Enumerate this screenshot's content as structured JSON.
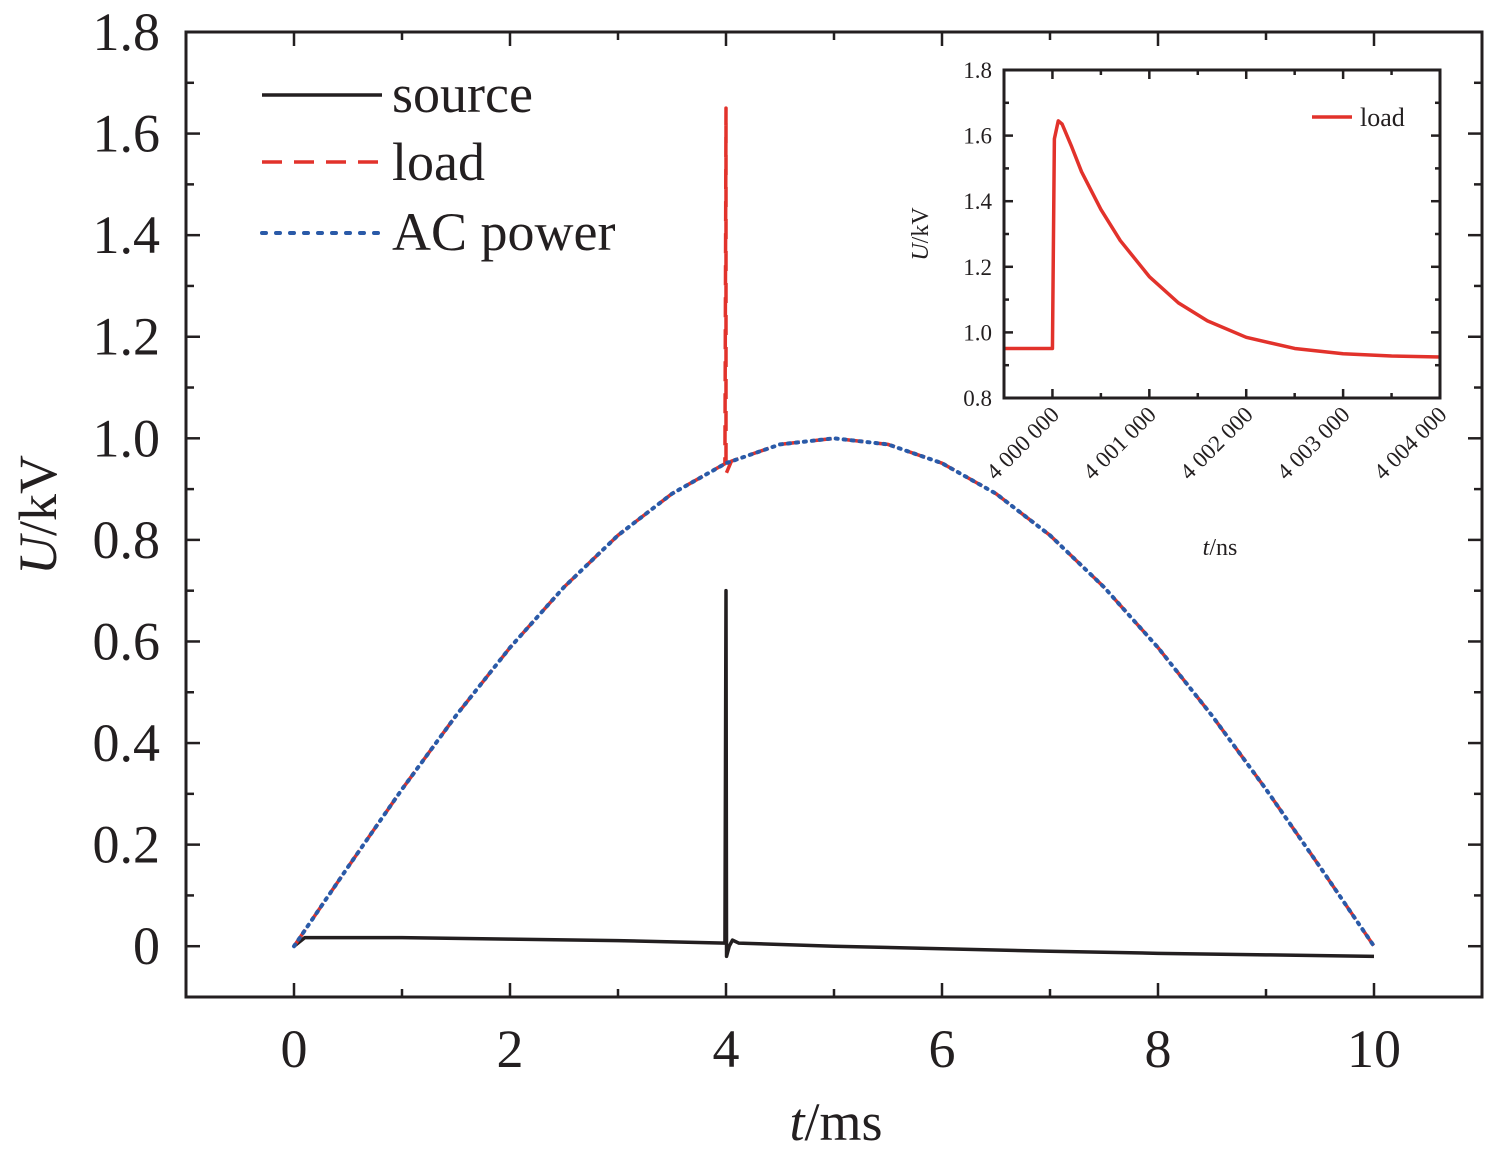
{
  "chart_data": [
    {
      "type": "line",
      "xlabel_var": "t",
      "xlabel_unit": "/ms",
      "ylabel_var": "U",
      "ylabel_unit": "/kV",
      "xlim": [
        -1,
        11
      ],
      "ylim": [
        -0.1,
        1.8
      ],
      "x_ticks": [
        0,
        2,
        4,
        6,
        8,
        10
      ],
      "x_tick_labels": [
        "0",
        "2",
        "4",
        "6",
        "8",
        "10"
      ],
      "y_ticks": [
        0,
        0.2,
        0.4,
        0.6,
        0.8,
        1.0,
        1.2,
        1.4,
        1.6,
        1.8
      ],
      "y_tick_labels": [
        "0",
        "0.2",
        "0.4",
        "0.6",
        "0.8",
        "1.0",
        "1.2",
        "1.4",
        "1.6",
        "1.8"
      ],
      "grid": false,
      "legend_position": "top-left",
      "series": [
        {
          "name": "source",
          "color": "#231f20",
          "style": "solid",
          "points": [
            [
              0,
              0
            ],
            [
              0.1,
              0.017
            ],
            [
              1,
              0.017
            ],
            [
              2,
              0.014
            ],
            [
              3,
              0.011
            ],
            [
              3.99,
              0.006
            ],
            [
              4.0,
              0.7
            ],
            [
              4.005,
              -0.02
            ],
            [
              4.03,
              0.0
            ],
            [
              4.06,
              0.012
            ],
            [
              4.12,
              0.006
            ],
            [
              5,
              0.0
            ],
            [
              6,
              -0.005
            ],
            [
              7,
              -0.01
            ],
            [
              8,
              -0.014
            ],
            [
              9,
              -0.017
            ],
            [
              10,
              -0.02
            ]
          ]
        },
        {
          "name": "load",
          "color": "#e2322b",
          "style": "dashed",
          "points": [
            [
              0,
              0
            ],
            [
              0.5,
              0.156
            ],
            [
              1,
              0.309
            ],
            [
              1.5,
              0.454
            ],
            [
              2,
              0.588
            ],
            [
              2.5,
              0.707
            ],
            [
              3,
              0.809
            ],
            [
              3.5,
              0.891
            ],
            [
              3.99,
              0.95
            ],
            [
              4.0,
              1.65
            ],
            [
              4.0,
              0.93
            ],
            [
              4.05,
              0.955
            ],
            [
              4.5,
              0.988
            ],
            [
              5,
              1.0
            ],
            [
              5.5,
              0.988
            ],
            [
              6,
              0.951
            ],
            [
              6.5,
              0.891
            ],
            [
              7,
              0.809
            ],
            [
              7.5,
              0.707
            ],
            [
              8,
              0.588
            ],
            [
              8.5,
              0.454
            ],
            [
              9,
              0.309
            ],
            [
              9.5,
              0.156
            ],
            [
              10,
              0.0
            ]
          ]
        },
        {
          "name": "AC power",
          "color": "#2a5aa8",
          "style": "dotted",
          "points": [
            [
              0,
              0
            ],
            [
              0.5,
              0.156
            ],
            [
              1,
              0.309
            ],
            [
              1.5,
              0.454
            ],
            [
              2,
              0.588
            ],
            [
              2.5,
              0.707
            ],
            [
              3,
              0.809
            ],
            [
              3.5,
              0.891
            ],
            [
              4,
              0.951
            ],
            [
              4.5,
              0.988
            ],
            [
              5,
              1.0
            ],
            [
              5.5,
              0.988
            ],
            [
              6,
              0.951
            ],
            [
              6.5,
              0.891
            ],
            [
              7,
              0.809
            ],
            [
              7.5,
              0.707
            ],
            [
              8,
              0.588
            ],
            [
              8.5,
              0.454
            ],
            [
              9,
              0.309
            ],
            [
              9.5,
              0.156
            ],
            [
              10,
              0.0
            ]
          ]
        }
      ]
    },
    {
      "type": "line",
      "xlabel_var": "t",
      "xlabel_unit": "/ns",
      "ylabel_var": "U",
      "ylabel_unit": "/kV",
      "xlim": [
        3999500,
        4004000
      ],
      "ylim": [
        0.8,
        1.8
      ],
      "x_ticks": [
        4000000,
        4001000,
        4002000,
        4003000,
        4004000
      ],
      "x_tick_labels": [
        "4 000 000",
        "4 001 000",
        "4 002 000",
        "4 003 000",
        "4 004 000"
      ],
      "y_ticks": [
        0.8,
        1.0,
        1.2,
        1.4,
        1.6,
        1.8
      ],
      "y_tick_labels": [
        "0.8",
        "1.0",
        "1.2",
        "1.4",
        "1.6",
        "1.8"
      ],
      "grid": false,
      "legend_position": "top-right",
      "series": [
        {
          "name": "load",
          "color": "#e2322b",
          "style": "solid",
          "points": [
            [
              3999500,
              0.951
            ],
            [
              3999990,
              0.951
            ],
            [
              4000000,
              0.951
            ],
            [
              4000020,
              1.59
            ],
            [
              4000060,
              1.645
            ],
            [
              4000100,
              1.635
            ],
            [
              4000200,
              1.565
            ],
            [
              4000300,
              1.49
            ],
            [
              4000500,
              1.375
            ],
            [
              4000700,
              1.28
            ],
            [
              4001000,
              1.17
            ],
            [
              4001300,
              1.09
            ],
            [
              4001600,
              1.035
            ],
            [
              4002000,
              0.985
            ],
            [
              4002500,
              0.951
            ],
            [
              4003000,
              0.935
            ],
            [
              4003500,
              0.928
            ],
            [
              4004000,
              0.925
            ]
          ]
        }
      ]
    }
  ]
}
